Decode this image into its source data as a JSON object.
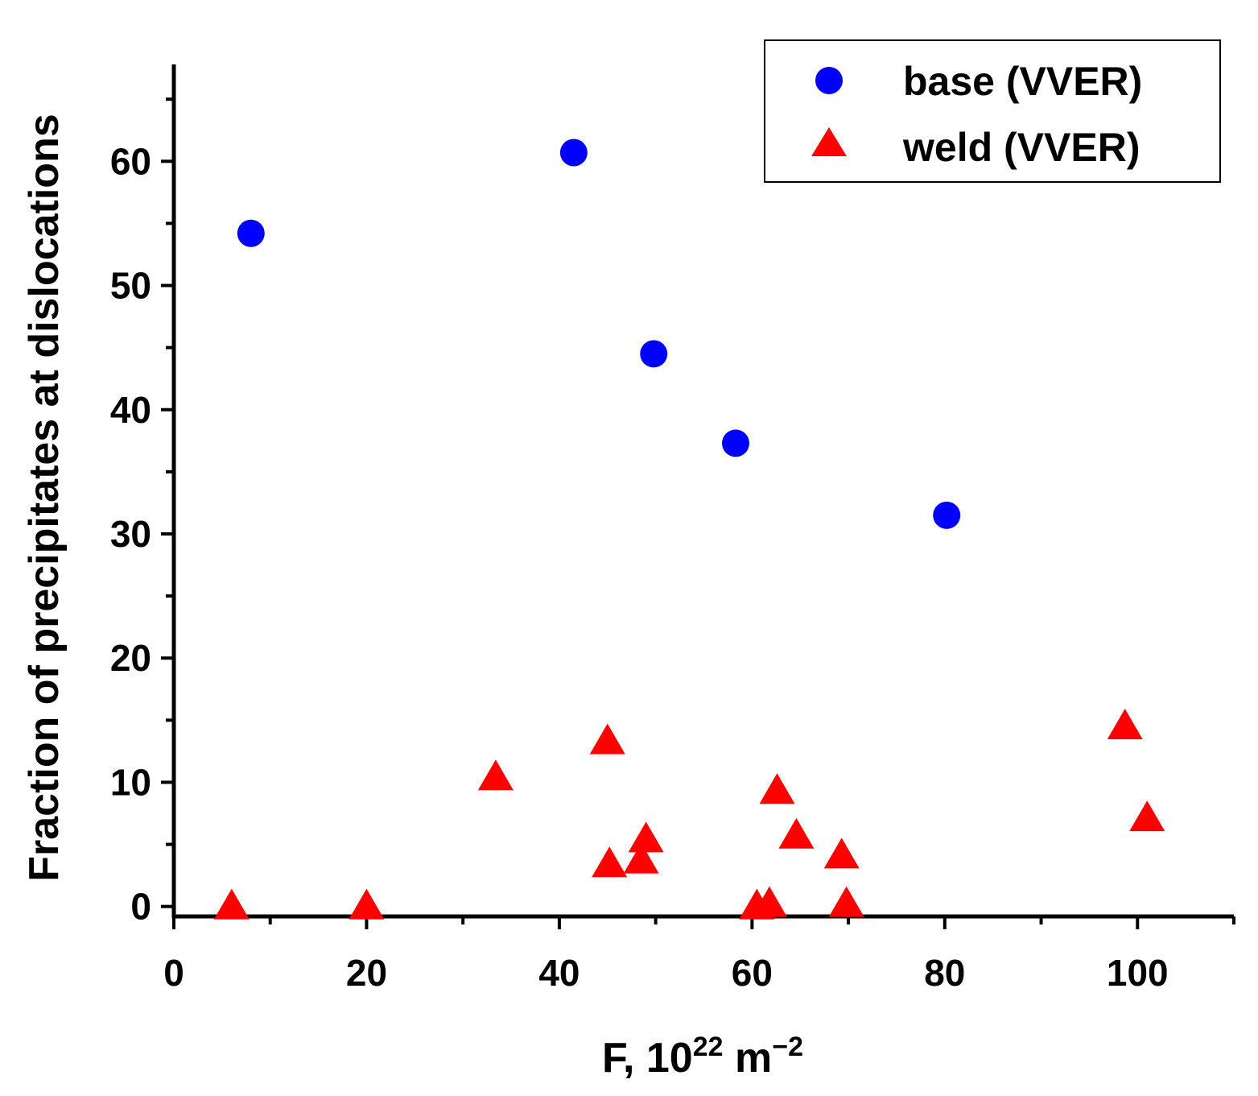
{
  "chart_data": {
    "type": "scatter",
    "xlabel": "F, 10",
    "xlabel_sup": "22",
    "xlabel_unit": " m",
    "xlabel_unit_sup": "−2",
    "ylabel": "Fraction of precipitates at dislocations",
    "xlim": [
      0,
      110
    ],
    "ylim": [
      -0.8,
      67.8
    ],
    "x_ticks": [
      0,
      20,
      40,
      60,
      80,
      100
    ],
    "y_ticks": [
      0,
      10,
      20,
      30,
      40,
      50,
      60
    ],
    "x_tick_labels": [
      "0",
      "20",
      "40",
      "60",
      "80",
      "100"
    ],
    "y_tick_labels": [
      "0",
      "10",
      "20",
      "30",
      "40",
      "50",
      "60"
    ],
    "grid": false,
    "legend_position": "top-right",
    "series": [
      {
        "name": "base (VVER)",
        "marker": "circle",
        "color": "#0000ff",
        "points": [
          {
            "x": 8.0,
            "y": 54.2
          },
          {
            "x": 41.5,
            "y": 60.7
          },
          {
            "x": 49.8,
            "y": 44.5
          },
          {
            "x": 58.3,
            "y": 37.3
          },
          {
            "x": 80.2,
            "y": 31.5
          }
        ]
      },
      {
        "name": "weld (VVER)",
        "marker": "triangle",
        "color": "#ff0000",
        "points": [
          {
            "x": 6.0,
            "y": 0.0
          },
          {
            "x": 20.0,
            "y": 0.0
          },
          {
            "x": 33.4,
            "y": 10.4
          },
          {
            "x": 45.0,
            "y": 13.3
          },
          {
            "x": 45.2,
            "y": 3.4
          },
          {
            "x": 48.5,
            "y": 3.7
          },
          {
            "x": 49.0,
            "y": 5.4
          },
          {
            "x": 60.5,
            "y": 0.0
          },
          {
            "x": 61.8,
            "y": 0.2
          },
          {
            "x": 62.6,
            "y": 9.3
          },
          {
            "x": 64.6,
            "y": 5.7
          },
          {
            "x": 69.3,
            "y": 4.1
          },
          {
            "x": 69.8,
            "y": 0.2
          },
          {
            "x": 98.7,
            "y": 14.5
          },
          {
            "x": 101.0,
            "y": 7.1
          }
        ]
      }
    ]
  }
}
